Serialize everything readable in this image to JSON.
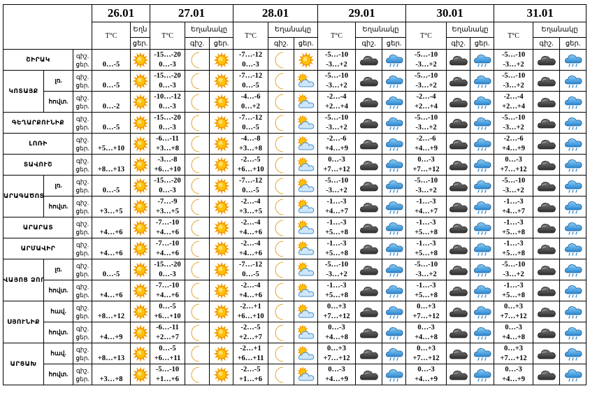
{
  "dates": [
    "26.01",
    "27.01",
    "28.01",
    "29.01",
    "30.01",
    "31.01"
  ],
  "header": {
    "temp": "T°C",
    "weather": "Եղանակը",
    "weather_short": "Եղն",
    "day": "ցեր.",
    "night": "գիշ."
  },
  "icons": {
    "sun": "sun-icon",
    "moon": "moon-icon",
    "sun_cloud": "sun-cloud-icon",
    "dark_cloud": "dark-cloud-icon",
    "cloud_rain": "cloud-rain-icon"
  },
  "groups": [
    {
      "region": "ՇԻՐԱԿ",
      "rows": [
        {
          "sub": "",
          "day0": "0…-5",
          "cols": [
            {
              "n": "-15…-20",
              "d": "0…-3"
            },
            {
              "n": "-7…-12",
              "d": "0…-3"
            },
            {
              "n": "-5…-10",
              "d": "-3…+2"
            },
            {
              "n": "-5…-10",
              "d": "-3…+2"
            },
            {
              "n": "-5…-10",
              "d": "-3…+2"
            }
          ]
        }
      ]
    },
    {
      "region": "ԿՈՏԱՅՔ",
      "rows": [
        {
          "sub": "լռ.",
          "day0": "0…-5",
          "cols": [
            {
              "n": "-15…-20",
              "d": "0…-3"
            },
            {
              "n": "-7…-12",
              "d": "0…-5"
            },
            {
              "n": "-5…-10",
              "d": "-3…+2"
            },
            {
              "n": "-5…-10",
              "d": "-3…+2"
            },
            {
              "n": "-5…-10",
              "d": "-3…+2"
            }
          ]
        },
        {
          "sub": "հովտ.",
          "day0": "0…-2",
          "cols": [
            {
              "n": "-10…-12",
              "d": "0…-3"
            },
            {
              "n": "-4…-6",
              "d": "0…+2"
            },
            {
              "n": "-2…-4",
              "d": "+2…+4"
            },
            {
              "n": "-2…-4",
              "d": "+2…+4"
            },
            {
              "n": "-2…-4",
              "d": "+2…+4"
            }
          ]
        }
      ]
    },
    {
      "region": "ԳԵՂԱՐՔՈՒՆԻՔ",
      "rows": [
        {
          "sub": "",
          "day0": "0…-5",
          "cols": [
            {
              "n": "-15…-20",
              "d": "0…-3"
            },
            {
              "n": "-7…-12",
              "d": "0…-5"
            },
            {
              "n": "-5…-10",
              "d": "-3…+2"
            },
            {
              "n": "-5…-10",
              "d": "-3…+2"
            },
            {
              "n": "-5…-10",
              "d": "-3…+2"
            }
          ]
        }
      ]
    },
    {
      "region": "ԼՈՌԻ",
      "rows": [
        {
          "sub": "",
          "day0": "+5…+10",
          "cols": [
            {
              "n": "-6…-11",
              "d": "+3…+8"
            },
            {
              "n": "-4…-8",
              "d": "+3…+8"
            },
            {
              "n": "-2…-6",
              "d": "+4…+9"
            },
            {
              "n": "-2…-6",
              "d": "+4…+9"
            },
            {
              "n": "-2…-6",
              "d": "+4…+9"
            }
          ]
        }
      ]
    },
    {
      "region": "ՏԱՎՈՒՇ",
      "rows": [
        {
          "sub": "",
          "day0": "+8…+13",
          "cols": [
            {
              "n": "-3…-8",
              "d": "+6…+10"
            },
            {
              "n": "-2…-5",
              "d": "+6…+10"
            },
            {
              "n": "0…-3",
              "d": "+7…+12"
            },
            {
              "n": "0…-3",
              "d": "+7…+12"
            },
            {
              "n": "0…-3",
              "d": "+7…+12"
            }
          ]
        }
      ]
    },
    {
      "region": "ԱՐԱԳԱԾՈՏՆ",
      "rows": [
        {
          "sub": "լռ.",
          "day0": "0…-5",
          "cols": [
            {
              "n": "-15…-20",
              "d": "0…-3"
            },
            {
              "n": "-7…-12",
              "d": "0…-5"
            },
            {
              "n": "-5…-10",
              "d": "-3…+2"
            },
            {
              "n": "-5…-10",
              "d": "-3…+2"
            },
            {
              "n": "-5…-10",
              "d": "-3…+2"
            }
          ]
        },
        {
          "sub": "հովտ.",
          "day0": "+3…+5",
          "cols": [
            {
              "n": "-7…-9",
              "d": "+3…+5"
            },
            {
              "n": "-2…-4",
              "d": "+3…+5"
            },
            {
              "n": "-1…-3",
              "d": "+4…+7"
            },
            {
              "n": "-1…-3",
              "d": "+4…+7"
            },
            {
              "n": "-1…-3",
              "d": "+4…+7"
            }
          ]
        }
      ]
    },
    {
      "region": "ԱՐԱՐԱՏ",
      "rows": [
        {
          "sub": "",
          "day0": "+4…+6",
          "cols": [
            {
              "n": "-7…-10",
              "d": "+4…+6"
            },
            {
              "n": "-2…-4",
              "d": "+4…+6"
            },
            {
              "n": "-1…-3",
              "d": "+5…+8"
            },
            {
              "n": "-1…-3",
              "d": "+5…+8"
            },
            {
              "n": "-1…-3",
              "d": "+5…+8"
            }
          ]
        }
      ]
    },
    {
      "region": "ԱՐՄԱՎԻՐ",
      "rows": [
        {
          "sub": "",
          "day0": "+4…+6",
          "cols": [
            {
              "n": "-7…-10",
              "d": "+4…+6"
            },
            {
              "n": "-2…-4",
              "d": "+4…+6"
            },
            {
              "n": "-1…-3",
              "d": "+5…+8"
            },
            {
              "n": "-1…-3",
              "d": "+5…+8"
            },
            {
              "n": "-1…-3",
              "d": "+5…+8"
            }
          ]
        }
      ]
    },
    {
      "region": "ՎԱՅՈՑ ՁՈՐ",
      "rows": [
        {
          "sub": "լռ.",
          "day0": "0…-5",
          "cols": [
            {
              "n": "-15…-20",
              "d": "0…-3"
            },
            {
              "n": "-7…-12",
              "d": "0…-5"
            },
            {
              "n": "-5…-10",
              "d": "-3…+2"
            },
            {
              "n": "-5…-10",
              "d": "-3…+2"
            },
            {
              "n": "-5…-10",
              "d": "-3…+2"
            }
          ]
        },
        {
          "sub": "հովտ.",
          "day0": "+4…+6",
          "cols": [
            {
              "n": "-7…-10",
              "d": "+4…+6"
            },
            {
              "n": "-2…-4",
              "d": "+4…+6"
            },
            {
              "n": "-1…-3",
              "d": "+5…+8"
            },
            {
              "n": "-1…-3",
              "d": "+5…+8"
            },
            {
              "n": "-1…-3",
              "d": "+5…+8"
            }
          ]
        }
      ]
    },
    {
      "region": "ՍՅՈՒՆԻՔ",
      "rows": [
        {
          "sub": "հավ.",
          "day0": "+8…+12",
          "cols": [
            {
              "n": "0…-5",
              "d": "+6…+10"
            },
            {
              "n": "-2…+1",
              "d": "+6…+10"
            },
            {
              "n": "0…+3",
              "d": "+7…+12"
            },
            {
              "n": "0…+3",
              "d": "+7…+12"
            },
            {
              "n": "0…+3",
              "d": "+7…+12"
            }
          ]
        },
        {
          "sub": "հովտ.",
          "day0": "+4…+9",
          "cols": [
            {
              "n": "-6…-11",
              "d": "+2…+7"
            },
            {
              "n": "-2…-5",
              "d": "+2…+7"
            },
            {
              "n": "0…-3",
              "d": "+4…+8"
            },
            {
              "n": "0…-3",
              "d": "+4…+8"
            },
            {
              "n": "0…-3",
              "d": "+4…+8"
            }
          ]
        }
      ]
    },
    {
      "region": "ԱՐՑԱԽ",
      "rows": [
        {
          "sub": "հավ.",
          "day0": "+8…+13",
          "cols": [
            {
              "n": "0…-5",
              "d": "+6…+11"
            },
            {
              "n": "-2…+1",
              "d": "+6…+11"
            },
            {
              "n": "0…+3",
              "d": "+7…+12"
            },
            {
              "n": "0…+3",
              "d": "+7…+12"
            },
            {
              "n": "0…+3",
              "d": "+7…+12"
            }
          ]
        },
        {
          "sub": "հովտ.",
          "day0": "+3…+8",
          "cols": [
            {
              "n": "-5…-10",
              "d": "+1…+6"
            },
            {
              "n": "-2…-5",
              "d": "+1…+6"
            },
            {
              "n": "0…-3",
              "d": "+4…+9"
            },
            {
              "n": "0…-3",
              "d": "+4…+9"
            },
            {
              "n": "0…-3",
              "d": "+4…+9"
            }
          ]
        }
      ]
    }
  ]
}
